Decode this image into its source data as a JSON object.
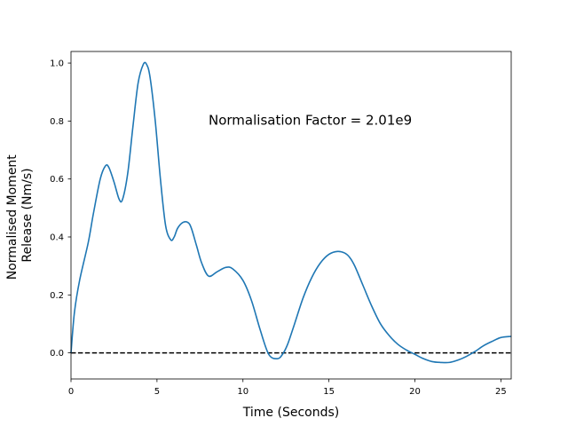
{
  "chart_data": {
    "type": "line",
    "xlabel": "Time (Seconds)",
    "ylabel_lines": [
      "Normalised Moment",
      "Release (Nm/s)"
    ],
    "annotation": {
      "text": "Normalisation Factor = 2.01e9",
      "x": 8.0,
      "y": 0.8
    },
    "xlim": [
      0,
      25.6
    ],
    "ylim": [
      -0.09,
      1.04
    ],
    "xticks": [
      0,
      5,
      10,
      15,
      20,
      25
    ],
    "yticks": [
      0.0,
      0.2,
      0.4,
      0.6,
      0.8,
      1.0
    ],
    "ytick_labels": [
      "0.0",
      "0.2",
      "0.4",
      "0.6",
      "0.8",
      "1.0"
    ],
    "grid": false,
    "series": [
      {
        "color": "#1f77b4",
        "x": [
          0,
          0.2,
          0.5,
          1.0,
          1.3,
          1.7,
          2.0,
          2.2,
          2.5,
          2.8,
          3.0,
          3.3,
          3.6,
          3.9,
          4.2,
          4.4,
          4.6,
          4.9,
          5.2,
          5.5,
          5.8,
          6.0,
          6.2,
          6.5,
          6.8,
          7.0,
          7.3,
          7.6,
          8.0,
          8.5,
          9.0,
          9.4,
          10.0,
          10.5,
          11.0,
          11.5,
          12.0,
          12.3,
          12.6,
          13.0,
          13.5,
          14.0,
          14.5,
          15.0,
          15.5,
          15.9,
          16.2,
          16.5,
          17.0,
          17.5,
          18.0,
          18.5,
          19.0,
          19.5,
          20.0,
          20.5,
          21.0,
          21.5,
          22.0,
          22.5,
          23.0,
          23.5,
          24.0,
          24.5,
          25.0,
          25.6
        ],
        "y": [
          0.0,
          0.14,
          0.25,
          0.38,
          0.48,
          0.6,
          0.645,
          0.64,
          0.59,
          0.53,
          0.53,
          0.62,
          0.78,
          0.93,
          0.995,
          0.995,
          0.95,
          0.8,
          0.6,
          0.44,
          0.39,
          0.4,
          0.43,
          0.45,
          0.45,
          0.43,
          0.37,
          0.31,
          0.265,
          0.28,
          0.295,
          0.29,
          0.25,
          0.18,
          0.08,
          -0.005,
          -0.02,
          -0.005,
          0.03,
          0.1,
          0.19,
          0.26,
          0.31,
          0.34,
          0.35,
          0.345,
          0.33,
          0.3,
          0.23,
          0.16,
          0.1,
          0.06,
          0.03,
          0.01,
          -0.005,
          -0.02,
          -0.03,
          -0.033,
          -0.033,
          -0.025,
          -0.012,
          0.005,
          0.025,
          0.04,
          0.053,
          0.057
        ]
      }
    ],
    "reference_line": {
      "y": 0.0,
      "style": "dashed",
      "color": "#000000"
    }
  }
}
